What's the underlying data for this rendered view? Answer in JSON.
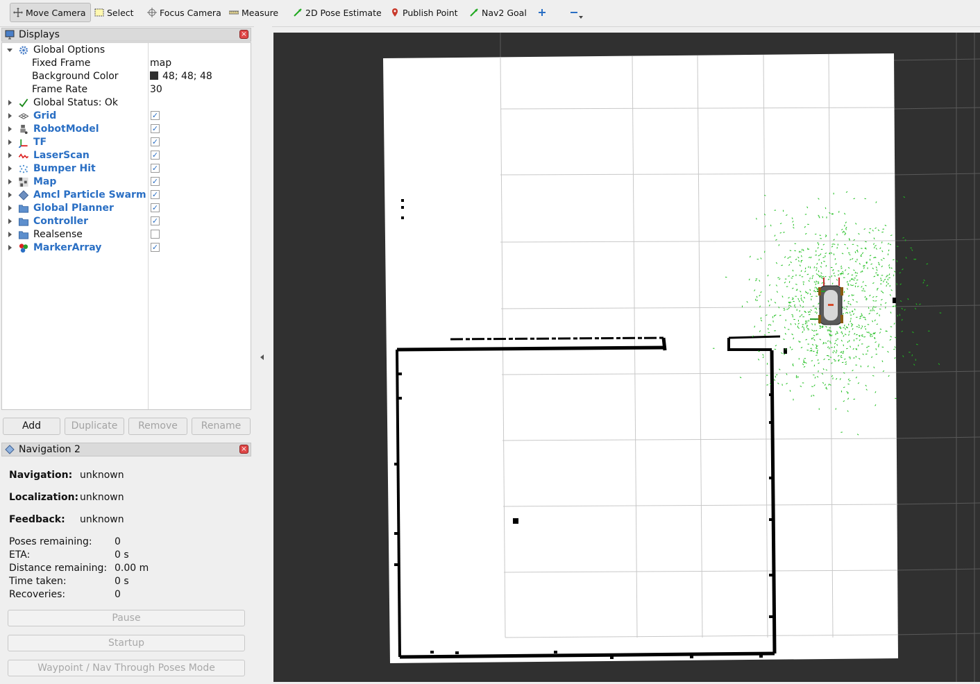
{
  "toolbar": {
    "tools": [
      {
        "label": "Move Camera",
        "icon": "move-camera-icon"
      },
      {
        "label": "Select",
        "icon": "select-icon"
      },
      {
        "label": "Focus Camera",
        "icon": "focus-camera-icon"
      },
      {
        "label": "Measure",
        "icon": "measure-icon"
      },
      {
        "label": "2D Pose Estimate",
        "icon": "pose-estimate-icon"
      },
      {
        "label": "Publish Point",
        "icon": "publish-point-icon"
      },
      {
        "label": "Nav2 Goal",
        "icon": "nav2-goal-icon"
      }
    ]
  },
  "displays": {
    "title": "Displays",
    "global_options": {
      "label": "Global Options",
      "fixed_frame_label": "Fixed Frame",
      "fixed_frame_value": "map",
      "background_color_label": "Background Color",
      "background_color_value": "48; 48; 48",
      "background_color_hex": "#303030",
      "frame_rate_label": "Frame Rate",
      "frame_rate_value": "30"
    },
    "global_status": "Global Status: Ok",
    "items": [
      {
        "label": "Grid",
        "checked": true
      },
      {
        "label": "RobotModel",
        "checked": true
      },
      {
        "label": "TF",
        "checked": true
      },
      {
        "label": "LaserScan",
        "checked": true
      },
      {
        "label": "Bumper Hit",
        "checked": true
      },
      {
        "label": "Map",
        "checked": true
      },
      {
        "label": "Amcl Particle Swarm",
        "checked": true
      },
      {
        "label": "Global Planner",
        "checked": true
      },
      {
        "label": "Controller",
        "checked": true
      },
      {
        "label": "Realsense",
        "checked": false
      },
      {
        "label": "MarkerArray",
        "checked": true
      }
    ],
    "buttons": {
      "add": "Add",
      "duplicate": "Duplicate",
      "remove": "Remove",
      "rename": "Rename"
    }
  },
  "navigation": {
    "title": "Navigation 2",
    "navigation_label": "Navigation:",
    "navigation_value": "unknown",
    "localization_label": "Localization:",
    "localization_value": "unknown",
    "feedback_label": "Feedback:",
    "feedback_value": "unknown",
    "poses_remaining_label": "Poses remaining:",
    "poses_remaining_value": "0",
    "eta_label": "ETA:",
    "eta_value": "0 s",
    "distance_label": "Distance remaining:",
    "distance_value": "0.00 m",
    "time_taken_label": "Time taken:",
    "time_taken_value": "0 s",
    "recoveries_label": "Recoveries:",
    "recoveries_value": "0",
    "pause_button": "Pause",
    "startup_button": "Startup",
    "waypoint_button": "Waypoint / Nav Through Poses Mode"
  },
  "colors": {
    "accent": "#2a6fc4",
    "viewport_bg": "#303030",
    "particles": "#1fbf1f"
  }
}
